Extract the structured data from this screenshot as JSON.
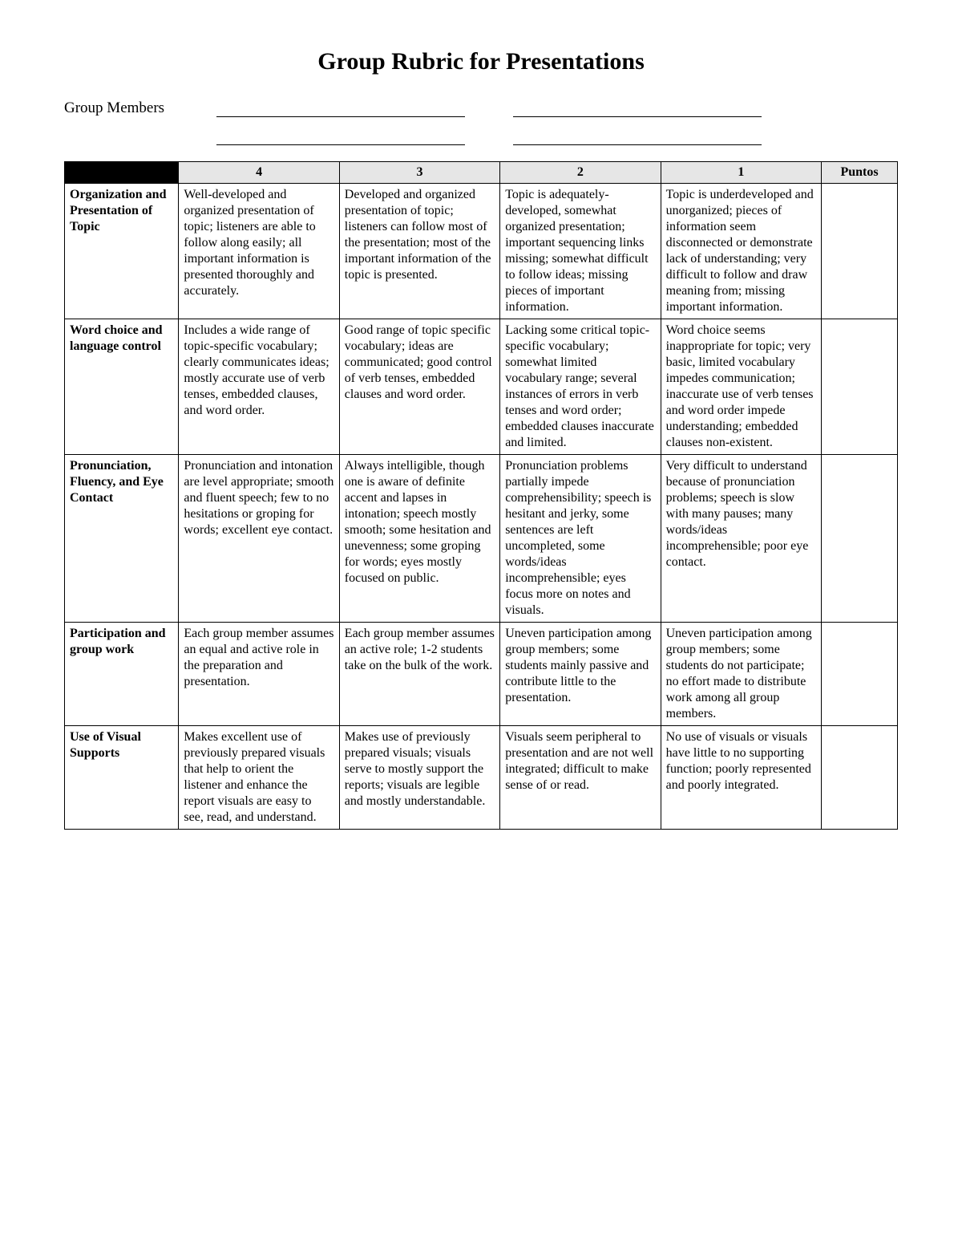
{
  "title": "Group Rubric for Presentations",
  "members_label": "Group Members",
  "headers": {
    "s4": "4",
    "s3": "3",
    "s2": "2",
    "s1": "1",
    "points": "Puntos"
  },
  "rows": [
    {
      "criteria": "Organization and Presentation of Topic",
      "s4": "Well-developed and organized presentation of topic; listeners are able to follow along easily; all important information is presented thoroughly and accurately.",
      "s3": "Developed and organized presentation of topic; listeners can follow most of the presentation; most of the important information of the topic is presented.",
      "s2": "Topic is adequately-developed, somewhat organized presentation; important sequencing links missing; somewhat difficult to follow ideas; missing pieces of important information.",
      "s1": "Topic is underdeveloped and unorganized; pieces of information seem disconnected or demonstrate lack of understanding; very difficult to follow and draw meaning from; missing important information."
    },
    {
      "criteria": "Word choice and language control",
      "s4": "Includes a wide range of topic-specific vocabulary; clearly communicates ideas; mostly accurate use of verb tenses, embedded clauses, and word order.",
      "s3": "Good range of topic specific vocabulary; ideas are communicated; good control of verb tenses, embedded clauses and word order.",
      "s2": "Lacking some critical topic-specific vocabulary; somewhat limited vocabulary range; several instances of errors in verb tenses and word order; embedded clauses inaccurate and limited.",
      "s1": "Word choice seems inappropriate for topic; very basic, limited vocabulary impedes communication; inaccurate use of verb tenses and word order impede understanding; embedded clauses non-existent."
    },
    {
      "criteria": "Pronunciation, Fluency, and Eye Contact",
      "s4": "Pronunciation and intonation are level appropriate; smooth and fluent speech; few to no hesitations or groping for words; excellent eye contact.",
      "s3": "Always intelligible, though one is aware of definite accent and lapses in intonation; speech mostly smooth; some hesitation and unevenness; some groping for words; eyes mostly focused on public.",
      "s2": "Pronunciation problems partially impede comprehensibility; speech is hesitant and jerky, some sentences are left uncompleted, some words/ideas incomprehensible; eyes focus more on notes and visuals.",
      "s1": "Very difficult to understand because of pronunciation problems; speech is slow with many pauses; many words/ideas incomprehensible; poor eye contact."
    },
    {
      "criteria": "Participation and group work",
      "s4": "Each group member assumes an equal and active role in the preparation and presentation.",
      "s3": "Each group member assumes an active role; 1-2 students take on the bulk of the work.",
      "s2": "Uneven participation among group members; some students mainly passive and contribute little to the presentation.",
      "s1": "Uneven participation among group members; some students do not participate; no effort made to distribute work among all group members."
    },
    {
      "criteria": "Use of Visual Supports",
      "s4": "Makes excellent use of previously prepared visuals that help to orient the listener and enhance the report visuals are easy to see, read, and understand.",
      "s3": "Makes use of previously prepared visuals; visuals serve to mostly support the reports; visuals are legible and mostly understandable.",
      "s2": "Visuals seem peripheral to presentation and are not well integrated; difficult to make sense of or read.",
      "s1": "No use of visuals or visuals have little to no supporting function; poorly represented and poorly integrated."
    }
  ]
}
